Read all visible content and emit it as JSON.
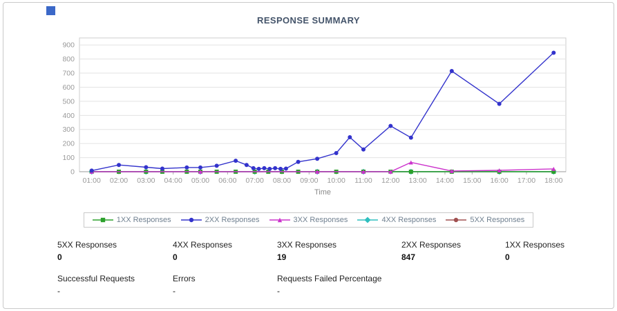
{
  "page": {
    "title": "RESPONSE SUMMARY"
  },
  "chart_data": {
    "type": "line",
    "title": "RESPONSE SUMMARY",
    "xlabel": "Time",
    "ylabel": "",
    "ylim": [
      0,
      950
    ],
    "yticks": [
      0,
      100,
      200,
      300,
      400,
      500,
      600,
      700,
      800,
      900
    ],
    "xtick_labels": [
      "01:00",
      "02:00",
      "03:00",
      "04:00",
      "05:00",
      "06:00",
      "07:00",
      "08:00",
      "09:00",
      "10:00",
      "11:00",
      "12:00",
      "13:00",
      "14:00",
      "15:00",
      "16:00",
      "17:00",
      "18:00"
    ],
    "grid": "horizontal",
    "legend_position": "bottom",
    "series": [
      {
        "name": "5XX Responses",
        "color": "#a05050",
        "marker": "circle",
        "x": [
          1,
          18
        ],
        "y": [
          0,
          0
        ]
      },
      {
        "name": "4XX Responses",
        "color": "#2fbfbf",
        "marker": "diamond",
        "x": [
          1,
          3,
          5,
          7,
          9.3,
          11,
          12.75,
          16,
          18
        ],
        "y": [
          0,
          0,
          0,
          0,
          0,
          0,
          0,
          0,
          0
        ]
      },
      {
        "name": "1XX Responses",
        "color": "#2ca02c",
        "marker": "square",
        "x": [
          1,
          2,
          3,
          3.6,
          4.5,
          5,
          5.6,
          6.3,
          7,
          7.5,
          8,
          8.6,
          9.3,
          10,
          11,
          12,
          12.75,
          14.25,
          16,
          18
        ],
        "y": [
          0,
          0,
          0,
          0,
          0,
          0,
          0,
          0,
          0,
          0,
          0,
          0,
          0,
          0,
          0,
          0,
          0,
          0,
          0,
          0
        ]
      },
      {
        "name": "3XX Responses",
        "color": "#cc33cc",
        "marker": "triangle",
        "x": [
          1,
          5,
          9.3,
          11,
          12,
          12.75,
          14.25,
          16,
          18
        ],
        "y": [
          0,
          0,
          0,
          0,
          0,
          66,
          5,
          10,
          20
        ]
      },
      {
        "name": "2XX Responses",
        "color": "#3333cc",
        "marker": "circle",
        "x": [
          1,
          2,
          3,
          3.6,
          4.5,
          5,
          5.6,
          6.3,
          6.7,
          6.95,
          7.15,
          7.35,
          7.55,
          7.75,
          7.95,
          8.15,
          8.6,
          9.3,
          10,
          10.5,
          11,
          12,
          12.75,
          14.25,
          16,
          18
        ],
        "y": [
          8,
          48,
          32,
          22,
          30,
          30,
          42,
          78,
          48,
          25,
          20,
          25,
          20,
          25,
          20,
          22,
          70,
          92,
          132,
          245,
          158,
          325,
          242,
          715,
          482,
          845
        ]
      }
    ],
    "legend_order": [
      "1XX Responses",
      "2XX Responses",
      "3XX Responses",
      "4XX Responses",
      "5XX Responses"
    ]
  },
  "stats": {
    "row1": [
      {
        "label": "5XX Responses",
        "value": "0"
      },
      {
        "label": "4XX Responses",
        "value": "0"
      },
      {
        "label": "3XX Responses",
        "value": "19"
      },
      {
        "label": "2XX Responses",
        "value": "847"
      },
      {
        "label": "1XX Responses",
        "value": "0"
      }
    ],
    "row2": [
      {
        "label": "Successful Requests",
        "value": "-"
      },
      {
        "label": "Errors",
        "value": "-"
      },
      {
        "label": "Requests Failed Percentage",
        "value": "-"
      }
    ]
  }
}
